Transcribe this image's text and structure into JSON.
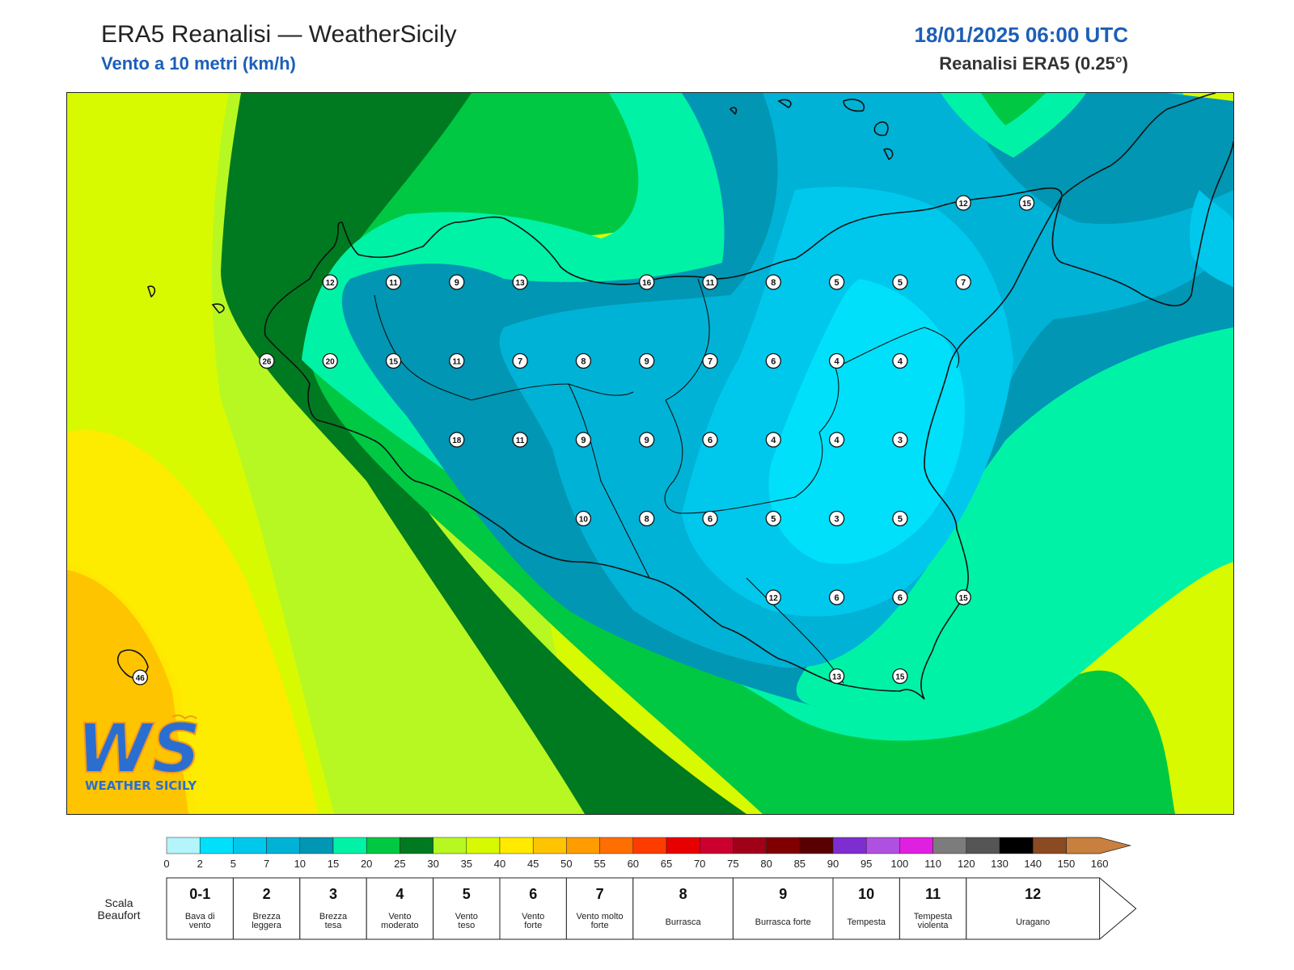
{
  "header": {
    "title": "ERA5 Reanalisi — WeatherSicily",
    "subtitle": "Vento a 10 metri (km/h)",
    "datetime": "18/01/2025 06:00 UTC",
    "source": "Reanalisi ERA5 (0.25°)"
  },
  "colors": {
    "accent_blue": "#1c5fb8",
    "ws_logo_blue": "#2a6fd0",
    "ws_logo_orange": "#f39a1d"
  },
  "logo": {
    "line1": "WS",
    "line2": "WEATHER SICILY"
  },
  "colorbar": {
    "bins": [
      {
        "from": 0,
        "to": 2,
        "color": "#b4f4fb"
      },
      {
        "from": 2,
        "to": 5,
        "color": "#00e0fa"
      },
      {
        "from": 5,
        "to": 7,
        "color": "#00c8ec"
      },
      {
        "from": 7,
        "to": 10,
        "color": "#00b2d6"
      },
      {
        "from": 10,
        "to": 15,
        "color": "#0096b4"
      },
      {
        "from": 15,
        "to": 20,
        "color": "#00f2a6"
      },
      {
        "from": 20,
        "to": 25,
        "color": "#00c842"
      },
      {
        "from": 25,
        "to": 30,
        "color": "#007a20"
      },
      {
        "from": 30,
        "to": 35,
        "color": "#b7f822"
      },
      {
        "from": 35,
        "to": 40,
        "color": "#d8fa00"
      },
      {
        "from": 40,
        "to": 45,
        "color": "#ffea00"
      },
      {
        "from": 45,
        "to": 50,
        "color": "#ffc400"
      },
      {
        "from": 50,
        "to": 55,
        "color": "#ff9d00"
      },
      {
        "from": 55,
        "to": 60,
        "color": "#ff6e00"
      },
      {
        "from": 60,
        "to": 65,
        "color": "#ff3c00"
      },
      {
        "from": 65,
        "to": 70,
        "color": "#e80000"
      },
      {
        "from": 70,
        "to": 75,
        "color": "#cc002e"
      },
      {
        "from": 75,
        "to": 80,
        "color": "#a00018"
      },
      {
        "from": 80,
        "to": 85,
        "color": "#800000"
      },
      {
        "from": 85,
        "to": 90,
        "color": "#5a0000"
      },
      {
        "from": 90,
        "to": 95,
        "color": "#7e2ed0"
      },
      {
        "from": 95,
        "to": 100,
        "color": "#b050e0"
      },
      {
        "from": 100,
        "to": 110,
        "color": "#e020e0"
      },
      {
        "from": 110,
        "to": 120,
        "color": "#7c7c7c"
      },
      {
        "from": 120,
        "to": 130,
        "color": "#555555"
      },
      {
        "from": 130,
        "to": 140,
        "color": "#000000"
      },
      {
        "from": 140,
        "to": 150,
        "color": "#8a4a22"
      },
      {
        "from": 150,
        "to": 160,
        "color": "#c9803e"
      }
    ],
    "ticks": [
      "0",
      "2",
      "5",
      "7",
      "10",
      "15",
      "20",
      "25",
      "30",
      "35",
      "40",
      "45",
      "50",
      "55",
      "60",
      "65",
      "70",
      "75",
      "80",
      "85",
      "90",
      "95",
      "100",
      "110",
      "120",
      "130",
      "140",
      "150",
      "160"
    ]
  },
  "beaufort": {
    "label": "Scala Beaufort",
    "scale": [
      {
        "force": "0-1",
        "desc": "Bava di vento",
        "from": 0,
        "to": 5
      },
      {
        "force": "2",
        "desc": "Brezza leggera",
        "from": 5,
        "to": 10
      },
      {
        "force": "3",
        "desc": "Brezza tesa",
        "from": 10,
        "to": 20
      },
      {
        "force": "4",
        "desc": "Vento moderato",
        "from": 20,
        "to": 30
      },
      {
        "force": "5",
        "desc": "Vento teso",
        "from": 30,
        "to": 40
      },
      {
        "force": "6",
        "desc": "Vento forte",
        "from": 40,
        "to": 50
      },
      {
        "force": "7",
        "desc": "Vento molto forte",
        "from": 50,
        "to": 60
      },
      {
        "force": "8",
        "desc": "Burrasca",
        "from": 60,
        "to": 75
      },
      {
        "force": "9",
        "desc": "Burrasca forte",
        "from": 75,
        "to": 90
      },
      {
        "force": "10",
        "desc": "Tempesta",
        "from": 90,
        "to": 100
      },
      {
        "force": "11",
        "desc": "Tempesta violenta",
        "from": 100,
        "to": 120
      },
      {
        "force": "12",
        "desc": "Uragano",
        "from": 120,
        "to": 160
      }
    ]
  },
  "stations": [
    {
      "value": "12",
      "speed": 12,
      "col": 4,
      "row": 0
    },
    {
      "value": "11",
      "speed": 11,
      "col": 5,
      "row": 0
    },
    {
      "value": "9",
      "speed": 9,
      "col": 6,
      "row": 0
    },
    {
      "value": "13",
      "speed": 13,
      "col": 7,
      "row": 0
    },
    {
      "value": "16",
      "speed": 16,
      "col": 9,
      "row": 0
    },
    {
      "value": "11",
      "speed": 11,
      "col": 10,
      "row": 0
    },
    {
      "value": "8",
      "speed": 8,
      "col": 11,
      "row": 0
    },
    {
      "value": "5",
      "speed": 5,
      "col": 12,
      "row": 0
    },
    {
      "value": "5",
      "speed": 5,
      "col": 13,
      "row": 0
    },
    {
      "value": "7",
      "speed": 7,
      "col": 14,
      "row": 0
    },
    {
      "value": "12",
      "speed": 12,
      "col": 14,
      "row": -1
    },
    {
      "value": "15",
      "speed": 15,
      "col": 15,
      "row": -1
    },
    {
      "value": "26",
      "speed": 26,
      "col": 3,
      "row": 1
    },
    {
      "value": "20",
      "speed": 20,
      "col": 4,
      "row": 1
    },
    {
      "value": "15",
      "speed": 15,
      "col": 5,
      "row": 1
    },
    {
      "value": "11",
      "speed": 11,
      "col": 6,
      "row": 1
    },
    {
      "value": "7",
      "speed": 7,
      "col": 7,
      "row": 1
    },
    {
      "value": "8",
      "speed": 8,
      "col": 8,
      "row": 1
    },
    {
      "value": "9",
      "speed": 9,
      "col": 9,
      "row": 1
    },
    {
      "value": "7",
      "speed": 7,
      "col": 10,
      "row": 1
    },
    {
      "value": "6",
      "speed": 6,
      "col": 11,
      "row": 1
    },
    {
      "value": "4",
      "speed": 4,
      "col": 12,
      "row": 1
    },
    {
      "value": "4",
      "speed": 4,
      "col": 13,
      "row": 1
    },
    {
      "value": "18",
      "speed": 18,
      "col": 6,
      "row": 2
    },
    {
      "value": "11",
      "speed": 11,
      "col": 7,
      "row": 2
    },
    {
      "value": "9",
      "speed": 9,
      "col": 8,
      "row": 2
    },
    {
      "value": "9",
      "speed": 9,
      "col": 9,
      "row": 2
    },
    {
      "value": "6",
      "speed": 6,
      "col": 10,
      "row": 2
    },
    {
      "value": "4",
      "speed": 4,
      "col": 11,
      "row": 2
    },
    {
      "value": "4",
      "speed": 4,
      "col": 12,
      "row": 2
    },
    {
      "value": "3",
      "speed": 3,
      "col": 13,
      "row": 2
    },
    {
      "value": "10",
      "speed": 10,
      "col": 8,
      "row": 3
    },
    {
      "value": "8",
      "speed": 8,
      "col": 9,
      "row": 3
    },
    {
      "value": "6",
      "speed": 6,
      "col": 10,
      "row": 3
    },
    {
      "value": "5",
      "speed": 5,
      "col": 11,
      "row": 3
    },
    {
      "value": "3",
      "speed": 3,
      "col": 12,
      "row": 3
    },
    {
      "value": "5",
      "speed": 5,
      "col": 13,
      "row": 3
    },
    {
      "value": "12",
      "speed": 12,
      "col": 11,
      "row": 4
    },
    {
      "value": "6",
      "speed": 6,
      "col": 12,
      "row": 4
    },
    {
      "value": "6",
      "speed": 6,
      "col": 13,
      "row": 4
    },
    {
      "value": "15",
      "speed": 15,
      "col": 14,
      "row": 4
    },
    {
      "value": "13",
      "speed": 13,
      "col": 12,
      "row": 5
    },
    {
      "value": "15",
      "speed": 15,
      "col": 13,
      "row": 5
    },
    {
      "value": "46",
      "speed": 46,
      "col": 1,
      "row": 5
    }
  ]
}
